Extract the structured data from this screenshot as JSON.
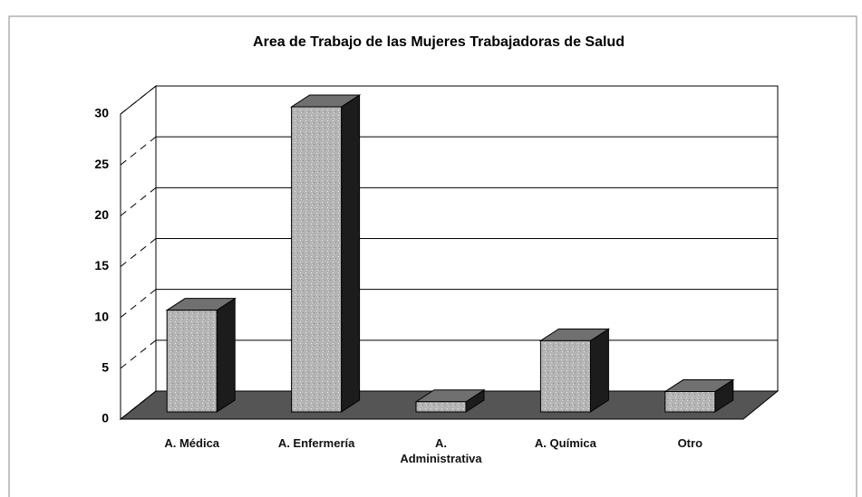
{
  "chart_data": {
    "type": "bar3d",
    "title": "Area de Trabajo de las Mujeres Trabajadoras de Salud",
    "categories": [
      "A. Médica",
      "A. Enfermería",
      "A. Administrativa",
      "A. Química",
      "Otro"
    ],
    "values": [
      10,
      30,
      1,
      7,
      2
    ],
    "color": "#b4b4b4",
    "ylim": [
      0,
      30
    ],
    "yticks": [
      0,
      5,
      10,
      15,
      20,
      25,
      30
    ],
    "grid": true
  }
}
